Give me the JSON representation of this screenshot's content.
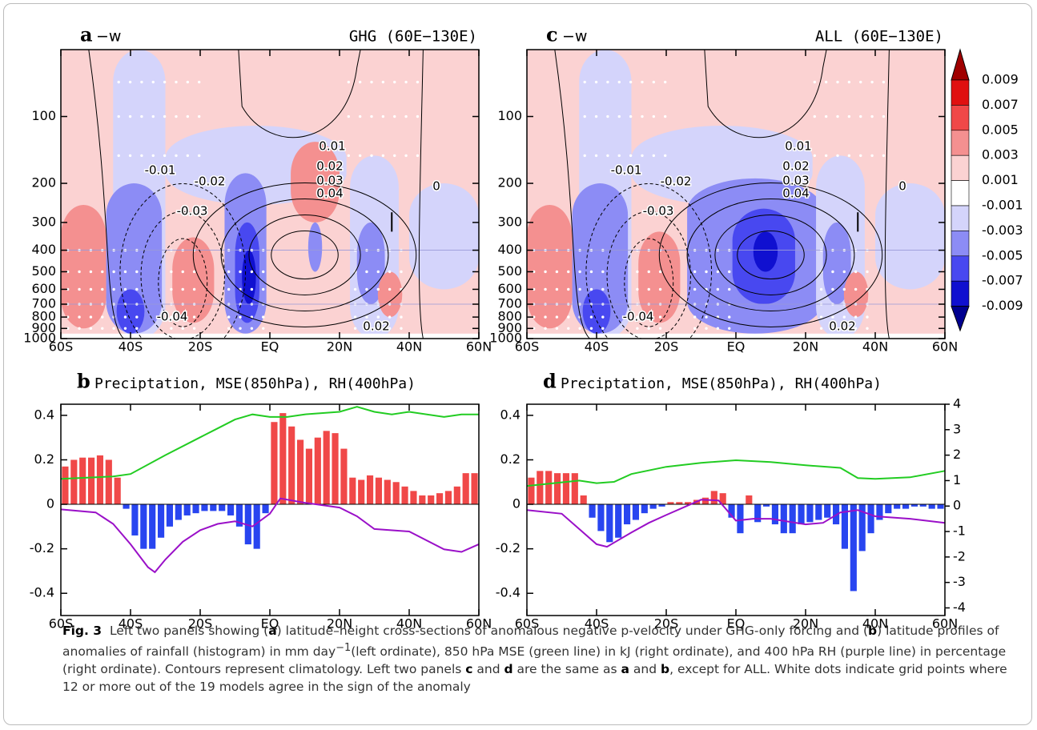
{
  "chart_data": [
    {
      "type": "contour",
      "label": "a",
      "variable": "−w",
      "title": "GHG (60E−130E)",
      "xlim": [
        -60,
        60
      ],
      "xticks": [
        {
          "value": -60,
          "label": "60S"
        },
        {
          "value": -40,
          "label": "40S"
        },
        {
          "value": -20,
          "label": "20S"
        },
        {
          "value": 0,
          "label": "EQ"
        },
        {
          "value": 20,
          "label": "20N"
        },
        {
          "value": 40,
          "label": "40N"
        },
        {
          "value": 60,
          "label": "60N"
        }
      ],
      "ylim": [
        1000,
        50
      ],
      "ylog": true,
      "yticks": [
        100,
        200,
        300,
        400,
        500,
        600,
        700,
        800,
        900,
        1000
      ],
      "contour_levels": [
        -0.01,
        -0.02,
        -0.03,
        -0.04,
        0.01,
        0.02,
        0.03,
        0.04,
        0,
        0.02
      ]
    },
    {
      "type": "contour",
      "label": "c",
      "variable": "−w",
      "title": "ALL (60E−130E)",
      "xlim": [
        -60,
        60
      ],
      "xticks": [
        {
          "value": -60,
          "label": "60S"
        },
        {
          "value": -40,
          "label": "40S"
        },
        {
          "value": -20,
          "label": "20S"
        },
        {
          "value": 0,
          "label": "EQ"
        },
        {
          "value": 20,
          "label": "20N"
        },
        {
          "value": 40,
          "label": "40N"
        },
        {
          "value": 60,
          "label": "60N"
        }
      ],
      "ylim": [
        1000,
        50
      ],
      "ylog": true,
      "yticks": [
        100,
        200,
        300,
        400,
        500,
        600,
        700,
        800,
        900,
        1000
      ],
      "contour_levels": [
        -0.01,
        -0.02,
        -0.03,
        -0.04,
        0.01,
        0.02,
        0.03,
        0.04,
        0,
        0.02
      ]
    },
    {
      "type": "bar",
      "label": "b",
      "title": "Preciptation, MSE(850hPa), RH(400hPa)",
      "xlim": [
        -60,
        60
      ],
      "xticks": [
        {
          "value": -60,
          "label": "60S"
        },
        {
          "value": -40,
          "label": "40S"
        },
        {
          "value": -20,
          "label": "20S"
        },
        {
          "value": 0,
          "label": "EQ"
        },
        {
          "value": 20,
          "label": "20N"
        },
        {
          "value": 40,
          "label": "40N"
        },
        {
          "value": 60,
          "label": "60N"
        }
      ],
      "ylim": [
        -0.5,
        0.45
      ],
      "yticks": [
        -0.4,
        -0.2,
        0,
        0.2,
        0.4
      ],
      "y2lim": [
        -4.3,
        4
      ],
      "bars": {
        "pos_color": "#f04848",
        "neg_color": "#2845f0",
        "x": [
          -58.75,
          -56.25,
          -53.75,
          -51.25,
          -48.75,
          -46.25,
          -43.75,
          -41.25,
          -38.75,
          -36.25,
          -33.75,
          -31.25,
          -28.75,
          -26.25,
          -23.75,
          -21.25,
          -18.75,
          -16.25,
          -13.75,
          -11.25,
          -8.75,
          -6.25,
          -3.75,
          -1.25,
          1.25,
          3.75,
          6.25,
          8.75,
          11.25,
          13.75,
          16.25,
          18.75,
          21.25,
          23.75,
          26.25,
          28.75,
          31.25,
          33.75,
          36.25,
          38.75,
          41.25,
          43.75,
          46.25,
          48.75,
          51.25,
          53.75,
          56.25,
          58.75
        ],
        "values": [
          0.17,
          0.2,
          0.21,
          0.21,
          0.22,
          0.2,
          0.12,
          -0.02,
          -0.14,
          -0.2,
          -0.2,
          -0.15,
          -0.1,
          -0.07,
          -0.05,
          -0.04,
          -0.03,
          -0.03,
          -0.03,
          -0.05,
          -0.1,
          -0.18,
          -0.2,
          -0.04,
          0.37,
          0.41,
          0.35,
          0.29,
          0.25,
          0.3,
          0.33,
          0.32,
          0.25,
          0.12,
          0.11,
          0.13,
          0.12,
          0.11,
          0.1,
          0.08,
          0.06,
          0.04,
          0.04,
          0.05,
          0.06,
          0.08,
          0.14,
          0.14
        ]
      },
      "lines": [
        {
          "color": "#22cc22",
          "axis": "y2",
          "x": [
            -60,
            -45,
            -40,
            -30,
            -20,
            -15,
            -10,
            -5,
            0,
            5,
            10,
            20,
            25,
            30,
            35,
            40,
            50,
            55,
            60
          ],
          "values": [
            1.07,
            1.16,
            1.26,
            2.0,
            2.7,
            3.05,
            3.4,
            3.6,
            3.5,
            3.5,
            3.6,
            3.7,
            3.9,
            3.7,
            3.6,
            3.7,
            3.5,
            3.6,
            3.6
          ]
        },
        {
          "color": "#9a10c8",
          "axis": "y2",
          "x": [
            -60,
            -50,
            -45,
            -40,
            -35,
            -33,
            -30,
            -25,
            -20,
            -15,
            -10,
            -5,
            0,
            3,
            10,
            20,
            25,
            30,
            40,
            50,
            55,
            60
          ],
          "values": [
            -0.13,
            -0.25,
            -0.7,
            -1.5,
            -2.4,
            -2.6,
            -2.1,
            -1.4,
            -0.95,
            -0.7,
            -0.6,
            -0.8,
            -0.3,
            0.3,
            0.13,
            -0.06,
            -0.4,
            -0.9,
            -1.0,
            -1.7,
            -1.8,
            -1.5
          ]
        }
      ]
    },
    {
      "type": "bar",
      "label": "d",
      "title": "Preciptation, MSE(850hPa), RH(400hPa)",
      "xlim": [
        -60,
        60
      ],
      "xticks": [
        {
          "value": -60,
          "label": "60S"
        },
        {
          "value": -40,
          "label": "40S"
        },
        {
          "value": -20,
          "label": "20S"
        },
        {
          "value": 0,
          "label": "EQ"
        },
        {
          "value": 20,
          "label": "20N"
        },
        {
          "value": 40,
          "label": "40N"
        },
        {
          "value": 60,
          "label": "60N"
        }
      ],
      "ylim": [
        -0.5,
        0.45
      ],
      "yticks": [
        -0.4,
        -0.2,
        0,
        0.2,
        0.4
      ],
      "y2lim": [
        -4.3,
        4
      ],
      "y2ticks": [
        -4,
        -3,
        -2,
        -1,
        0,
        1,
        2,
        3,
        4
      ],
      "bars": {
        "pos_color": "#f04848",
        "neg_color": "#2845f0",
        "x": [
          -58.75,
          -56.25,
          -53.75,
          -51.25,
          -48.75,
          -46.25,
          -43.75,
          -41.25,
          -38.75,
          -36.25,
          -33.75,
          -31.25,
          -28.75,
          -26.25,
          -23.75,
          -21.25,
          -18.75,
          -16.25,
          -13.75,
          -11.25,
          -8.75,
          -6.25,
          -3.75,
          -1.25,
          1.25,
          3.75,
          6.25,
          8.75,
          11.25,
          13.75,
          16.25,
          18.75,
          21.25,
          23.75,
          26.25,
          28.75,
          31.25,
          33.75,
          36.25,
          38.75,
          41.25,
          43.75,
          46.25,
          48.75,
          51.25,
          53.75,
          56.25,
          58.75
        ],
        "values": [
          0.12,
          0.15,
          0.15,
          0.14,
          0.14,
          0.14,
          0.04,
          -0.06,
          -0.12,
          -0.17,
          -0.15,
          -0.09,
          -0.07,
          -0.04,
          -0.02,
          -0.01,
          0.01,
          0.01,
          0.01,
          0.02,
          0.03,
          0.06,
          0.05,
          -0.06,
          -0.13,
          0.04,
          -0.08,
          -0.01,
          -0.09,
          -0.13,
          -0.13,
          -0.09,
          -0.08,
          -0.07,
          -0.06,
          -0.09,
          -0.2,
          -0.39,
          -0.21,
          -0.13,
          -0.07,
          -0.04,
          -0.02,
          -0.02,
          -0.01,
          -0.01,
          -0.02,
          -0.02
        ]
      },
      "lines": [
        {
          "color": "#22cc22",
          "axis": "y2",
          "x": [
            -60,
            -45,
            -40,
            -35,
            -30,
            -20,
            -10,
            0,
            10,
            20,
            30,
            35,
            40,
            50,
            60
          ],
          "values": [
            0.79,
            1.0,
            0.9,
            0.95,
            1.26,
            1.54,
            1.7,
            1.8,
            1.73,
            1.6,
            1.5,
            1.1,
            1.07,
            1.13,
            1.38
          ]
        },
        {
          "color": "#9a10c8",
          "axis": "y2",
          "x": [
            -60,
            -50,
            -45,
            -40,
            -37,
            -30,
            -25,
            -20,
            -10,
            -5,
            0,
            5,
            10,
            20,
            25,
            30,
            35,
            40,
            50,
            60
          ],
          "values": [
            -0.16,
            -0.3,
            -0.9,
            -1.5,
            -1.6,
            -1.04,
            -0.66,
            -0.35,
            0.25,
            0.22,
            -0.57,
            -0.5,
            -0.5,
            -0.72,
            -0.66,
            -0.25,
            -0.16,
            -0.4,
            -0.5,
            -0.66
          ]
        }
      ]
    }
  ],
  "colorbar": {
    "ticks": [
      0.009,
      0.007,
      0.005,
      0.003,
      0.001,
      -0.001,
      -0.003,
      -0.005,
      -0.007,
      -0.009
    ],
    "colors": [
      "#a00000",
      "#e01010",
      "#f04848",
      "#f49090",
      "#fbd2d2",
      "#ffffff",
      "#d4d4fb",
      "#8c8cf5",
      "#4848f0",
      "#1010d0",
      "#000090"
    ]
  },
  "caption": {
    "parts": [
      "Fig. 3",
      "Left two panels showing (",
      "a",
      ") latitude–height cross-sections of anomalous negative p-velocity under GHG-only forcing and (",
      "b",
      ") latitude profiles of anomalies of rainfall (histogram) in mm day",
      "−1",
      "(left ordinate), 850 hPa MSE (green line) in kJ (right ordinate), and 400 hPa RH (purple line) in percentage (right ordinate). Contours represent climatology. Left two panels ",
      "c",
      " and ",
      "d",
      " are the same as ",
      "a",
      " and ",
      "b",
      ", except for ALL. White dots indicate grid points where 12 or more out of the 19 models agree in the sign of the anomaly"
    ]
  }
}
